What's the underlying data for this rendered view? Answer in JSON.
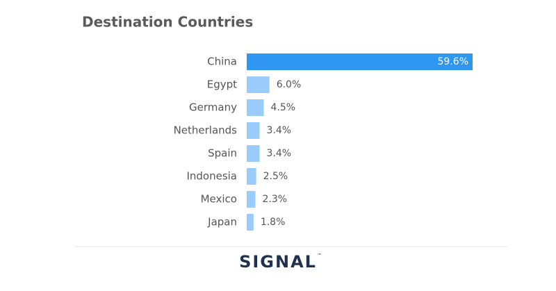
{
  "chart_data": {
    "type": "bar",
    "orientation": "horizontal",
    "title": "Destination Countries",
    "categories": [
      "China",
      "Egypt",
      "Germany",
      "Netherlands",
      "Spain",
      "Indonesia",
      "Mexico",
      "Japan"
    ],
    "values": [
      59.6,
      6.0,
      4.5,
      3.4,
      3.4,
      2.5,
      2.3,
      1.8
    ],
    "value_labels": [
      "59.6%",
      "6.0%",
      "4.5%",
      "3.4%",
      "3.4%",
      "2.5%",
      "2.3%",
      "1.8%"
    ],
    "colors": [
      "#2f96f2",
      "#99ccfb",
      "#99ccfb",
      "#99ccfb",
      "#99ccfb",
      "#99ccfb",
      "#99ccfb",
      "#99ccfb"
    ]
  },
  "footer": {
    "logo": "SIGNAL",
    "trademark": "™"
  }
}
